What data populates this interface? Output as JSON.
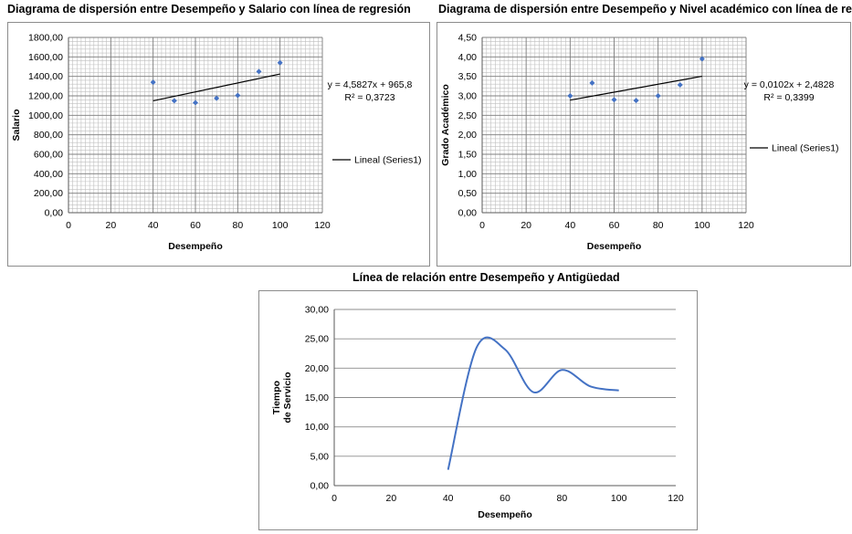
{
  "charts": [
    {
      "type": "scatter",
      "title": "Diagrama de dispersión entre Desempeño y Salario con línea de regresión",
      "xlabel": "Desempeño",
      "ylabel": "Salario",
      "xlim": [
        0,
        120
      ],
      "ylim": [
        0,
        1800
      ],
      "xticks": [
        "0",
        "20",
        "40",
        "60",
        "80",
        "100",
        "120"
      ],
      "yticks": [
        "0,00",
        "200,00",
        "400,00",
        "600,00",
        "800,00",
        "1000,00",
        "1200,00",
        "1400,00",
        "1600,00",
        "1800,00"
      ],
      "points": [
        [
          40,
          1340
        ],
        [
          50,
          1150
        ],
        [
          60,
          1130
        ],
        [
          70,
          1175
        ],
        [
          80,
          1205
        ],
        [
          90,
          1450
        ],
        [
          100,
          1540
        ]
      ],
      "trendline": {
        "x": [
          40,
          100
        ],
        "slope": 4.5827,
        "intercept": 965.8
      },
      "equation": "y = 4,5827x + 965,8",
      "r2": "R² = 0,3723",
      "legend": "Lineal (Series1)",
      "grid": true,
      "point_color": "#4472c4"
    },
    {
      "type": "scatter",
      "title": "Diagrama de dispersión entre Desempeño y Nivel académico con línea de regresión",
      "xlabel": "Desempeño",
      "ylabel": "Grado Académico",
      "xlim": [
        0,
        120
      ],
      "ylim": [
        0,
        4.5
      ],
      "xticks": [
        "0",
        "20",
        "40",
        "60",
        "80",
        "100",
        "120"
      ],
      "yticks": [
        "0,00",
        "0,50",
        "1,00",
        "1,50",
        "2,00",
        "2,50",
        "3,00",
        "3,50",
        "4,00",
        "4,50"
      ],
      "points": [
        [
          40,
          3.0
        ],
        [
          50,
          3.33
        ],
        [
          60,
          2.9
        ],
        [
          70,
          2.88
        ],
        [
          80,
          3.0
        ],
        [
          90,
          3.28
        ],
        [
          100,
          3.95
        ]
      ],
      "trendline": {
        "x": [
          40,
          100
        ],
        "slope": 0.0102,
        "intercept": 2.4828
      },
      "equation": "y = 0,0102x + 2,4828",
      "r2": "R² = 0,3399",
      "legend": "Lineal (Series1)",
      "grid": true,
      "point_color": "#4472c4"
    },
    {
      "type": "line",
      "title": "Línea de relación entre Desempeño y Antigüedad",
      "xlabel": "Desempeño",
      "ylabel_lines": [
        "Tiempo",
        "de Servicio"
      ],
      "xlim": [
        0,
        120
      ],
      "ylim": [
        0,
        30
      ],
      "xticks": [
        "0",
        "20",
        "40",
        "60",
        "80",
        "100",
        "120"
      ],
      "yticks": [
        "0,00",
        "5,00",
        "10,00",
        "15,00",
        "20,00",
        "25,00",
        "30,00"
      ],
      "x": [
        40,
        50,
        60,
        70,
        80,
        90,
        100
      ],
      "y": [
        2.7,
        23.5,
        23.2,
        15.9,
        19.7,
        16.9,
        16.2
      ],
      "grid": "horizontal",
      "line_color": "#4472c4"
    }
  ]
}
